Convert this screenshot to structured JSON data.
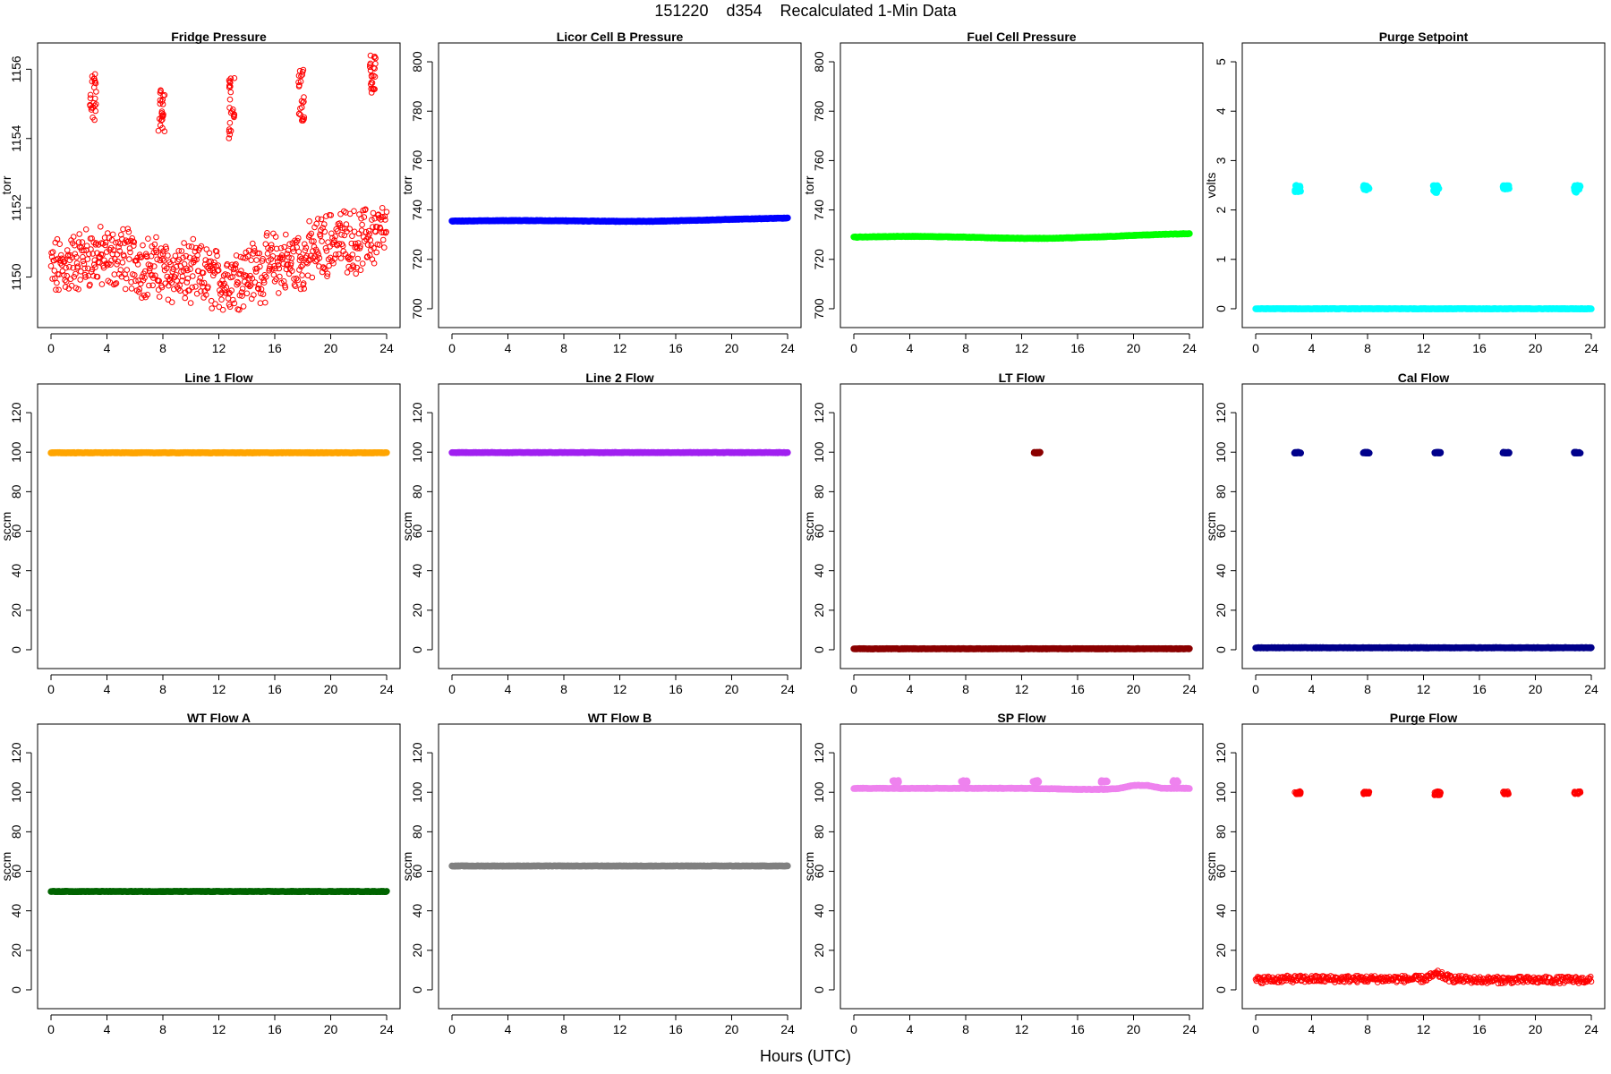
{
  "figure": {
    "title": "151220    d354    Recalculated 1-Min Data",
    "xlabel": "Hours (UTC)"
  },
  "chart_data": [
    {
      "type": "scatter",
      "title": "Fridge Pressure",
      "ylabel": "torr",
      "xlim": [
        0,
        24
      ],
      "xticks": [
        0,
        4,
        8,
        12,
        16,
        20,
        24
      ],
      "ylim": [
        1148.8,
        1156.5
      ],
      "yticks": [
        1150,
        1152,
        1154,
        1156
      ],
      "color": "#ff0000",
      "marker": "open-circle",
      "series": [
        {
          "x": [
            0,
            1,
            2,
            3,
            4,
            5,
            6,
            7,
            8,
            9,
            10,
            11,
            12,
            13,
            14,
            15,
            16,
            17,
            18,
            19,
            20,
            21,
            22,
            23,
            24
          ],
          "y": [
            1150.2,
            1150.3,
            1150.5,
            1150.6,
            1150.5,
            1150.6,
            1150.4,
            1150.3,
            1150.2,
            1150.1,
            1150.1,
            1150.0,
            1149.9,
            1150.0,
            1150.1,
            1150.2,
            1150.4,
            1150.4,
            1150.5,
            1150.8,
            1151.0,
            1151.1,
            1151.0,
            1151.2,
            1151.3
          ]
        }
      ],
      "excursions": [
        {
          "x": 3.0,
          "y_min": 1154.5,
          "y_max": 1156.0
        },
        {
          "x": 7.9,
          "y_min": 1154.2,
          "y_max": 1155.5
        },
        {
          "x": 12.9,
          "y_min": 1154.0,
          "y_max": 1156.0
        },
        {
          "x": 17.9,
          "y_min": 1154.5,
          "y_max": 1156.0
        },
        {
          "x": 23.0,
          "y_min": 1155.3,
          "y_max": 1156.4
        }
      ]
    },
    {
      "type": "scatter",
      "title": "Licor Cell B Pressure",
      "ylabel": "torr",
      "xlim": [
        0,
        24
      ],
      "xticks": [
        0,
        4,
        8,
        12,
        16,
        20,
        24
      ],
      "ylim": [
        696,
        804
      ],
      "yticks": [
        700,
        720,
        740,
        760,
        780,
        800
      ],
      "color": "#0000ff",
      "marker": "filled-circle",
      "series": [
        {
          "x": [
            0,
            2,
            4,
            6,
            8,
            10,
            12,
            14,
            16,
            18,
            20,
            22,
            24
          ],
          "y": [
            735.5,
            735.6,
            735.7,
            735.7,
            735.6,
            735.5,
            735.4,
            735.4,
            735.6,
            735.9,
            736.2,
            736.5,
            736.7
          ]
        }
      ]
    },
    {
      "type": "scatter",
      "title": "Fuel Cell Pressure",
      "ylabel": "torr",
      "xlim": [
        0,
        24
      ],
      "xticks": [
        0,
        4,
        8,
        12,
        16,
        20,
        24
      ],
      "ylim": [
        696,
        804
      ],
      "yticks": [
        700,
        720,
        740,
        760,
        780,
        800
      ],
      "color": "#00ff00",
      "marker": "filled-circle",
      "series": [
        {
          "x": [
            0,
            2,
            4,
            6,
            8,
            10,
            12,
            14,
            16,
            18,
            20,
            22,
            24
          ],
          "y": [
            729.0,
            729.2,
            729.3,
            729.2,
            729.0,
            728.7,
            728.5,
            728.5,
            728.8,
            729.2,
            729.7,
            730.1,
            730.4
          ]
        }
      ]
    },
    {
      "type": "scatter",
      "title": "Purge Setpoint",
      "ylabel": "volts",
      "xlim": [
        0,
        24
      ],
      "xticks": [
        0,
        4,
        8,
        12,
        16,
        20,
        24
      ],
      "ylim": [
        -0.2,
        5.2
      ],
      "yticks": [
        0,
        1,
        2,
        3,
        4,
        5
      ],
      "color": "#00ffff",
      "marker": "filled-circle",
      "series": [
        {
          "x": [
            0,
            24
          ],
          "y": [
            0,
            0
          ]
        }
      ],
      "excursions": [
        {
          "x": 3.0,
          "y_min": 2.35,
          "y_max": 2.5
        },
        {
          "x": 7.9,
          "y_min": 2.4,
          "y_max": 2.5
        },
        {
          "x": 12.9,
          "y_min": 2.35,
          "y_max": 2.5
        },
        {
          "x": 17.9,
          "y_min": 2.42,
          "y_max": 2.5
        },
        {
          "x": 23.0,
          "y_min": 2.35,
          "y_max": 2.5
        }
      ]
    },
    {
      "type": "scatter",
      "title": "Line 1 Flow",
      "ylabel": "sccm",
      "xlim": [
        0,
        24
      ],
      "xticks": [
        0,
        4,
        8,
        12,
        16,
        20,
        24
      ],
      "ylim": [
        -5,
        130
      ],
      "yticks": [
        0,
        20,
        40,
        60,
        80,
        100,
        120
      ],
      "color": "#ffa500",
      "marker": "filled-circle",
      "series": [
        {
          "x": [
            0,
            24
          ],
          "y": [
            99.7,
            99.7
          ]
        }
      ]
    },
    {
      "type": "scatter",
      "title": "Line 2 Flow",
      "ylabel": "sccm",
      "xlim": [
        0,
        24
      ],
      "xticks": [
        0,
        4,
        8,
        12,
        16,
        20,
        24
      ],
      "ylim": [
        -5,
        130
      ],
      "yticks": [
        0,
        20,
        40,
        60,
        80,
        100,
        120
      ],
      "color": "#a020f0",
      "marker": "filled-circle",
      "series": [
        {
          "x": [
            0,
            24
          ],
          "y": [
            99.8,
            99.8
          ]
        }
      ]
    },
    {
      "type": "scatter",
      "title": "LT Flow",
      "ylabel": "sccm",
      "xlim": [
        0,
        24
      ],
      "xticks": [
        0,
        4,
        8,
        12,
        16,
        20,
        24
      ],
      "ylim": [
        -5,
        130
      ],
      "yticks": [
        0,
        20,
        40,
        60,
        80,
        100,
        120
      ],
      "color": "#8b0000",
      "marker": "filled-circle",
      "series": [
        {
          "x": [
            0,
            24
          ],
          "y": [
            0.5,
            0.5
          ]
        }
      ],
      "excursions": [
        {
          "x": 13.1,
          "y_min": 99.5,
          "y_max": 100
        }
      ]
    },
    {
      "type": "scatter",
      "title": "Cal Flow",
      "ylabel": "sccm",
      "xlim": [
        0,
        24
      ],
      "xticks": [
        0,
        4,
        8,
        12,
        16,
        20,
        24
      ],
      "ylim": [
        -5,
        130
      ],
      "yticks": [
        0,
        20,
        40,
        60,
        80,
        100,
        120
      ],
      "color": "#00008b",
      "marker": "filled-circle",
      "series": [
        {
          "x": [
            0,
            24
          ],
          "y": [
            1,
            1
          ]
        }
      ],
      "excursions": [
        {
          "x": 3.0,
          "y_min": 99.5,
          "y_max": 100
        },
        {
          "x": 7.9,
          "y_min": 99.5,
          "y_max": 100
        },
        {
          "x": 13.0,
          "y_min": 99.5,
          "y_max": 100
        },
        {
          "x": 17.9,
          "y_min": 99.5,
          "y_max": 100
        },
        {
          "x": 23.0,
          "y_min": 99.5,
          "y_max": 100
        }
      ]
    },
    {
      "type": "scatter",
      "title": "WT Flow A",
      "ylabel": "sccm",
      "xlim": [
        0,
        24
      ],
      "xticks": [
        0,
        4,
        8,
        12,
        16,
        20,
        24
      ],
      "ylim": [
        -5,
        130
      ],
      "yticks": [
        0,
        20,
        40,
        60,
        80,
        100,
        120
      ],
      "color": "#006400",
      "marker": "filled-circle",
      "series": [
        {
          "x": [
            0,
            24
          ],
          "y": [
            49.8,
            49.8
          ]
        }
      ]
    },
    {
      "type": "scatter",
      "title": "WT Flow B",
      "ylabel": "sccm",
      "xlim": [
        0,
        24
      ],
      "xticks": [
        0,
        4,
        8,
        12,
        16,
        20,
        24
      ],
      "ylim": [
        -5,
        130
      ],
      "yticks": [
        0,
        20,
        40,
        60,
        80,
        100,
        120
      ],
      "color": "#808080",
      "marker": "filled-circle",
      "series": [
        {
          "x": [
            0,
            24
          ],
          "y": [
            62.7,
            62.7
          ]
        }
      ]
    },
    {
      "type": "scatter",
      "title": "SP Flow",
      "ylabel": "sccm",
      "xlim": [
        0,
        24
      ],
      "xticks": [
        0,
        4,
        8,
        12,
        16,
        20,
        24
      ],
      "ylim": [
        -5,
        130
      ],
      "yticks": [
        0,
        20,
        40,
        60,
        80,
        100,
        120
      ],
      "color": "#ee82ee",
      "marker": "filled-circle",
      "series": [
        {
          "x": [
            0,
            2,
            4,
            6,
            8,
            10,
            12,
            14,
            16,
            18,
            19,
            20,
            21,
            22,
            23,
            24
          ],
          "y": [
            102,
            102,
            102,
            102,
            102,
            102,
            102,
            101.8,
            101.5,
            101.5,
            102,
            103.5,
            103.5,
            102,
            102,
            102
          ]
        }
      ],
      "excursions": [
        {
          "x": 3.0,
          "y_min": 105,
          "y_max": 106
        },
        {
          "x": 7.9,
          "y_min": 105,
          "y_max": 106
        },
        {
          "x": 13.0,
          "y_min": 105,
          "y_max": 106
        },
        {
          "x": 17.9,
          "y_min": 105,
          "y_max": 106
        },
        {
          "x": 23.0,
          "y_min": 105,
          "y_max": 106
        }
      ]
    },
    {
      "type": "scatter",
      "title": "Purge Flow",
      "ylabel": "sccm",
      "xlim": [
        0,
        24
      ],
      "xticks": [
        0,
        4,
        8,
        12,
        16,
        20,
        24
      ],
      "ylim": [
        -5,
        130
      ],
      "yticks": [
        0,
        20,
        40,
        60,
        80,
        100,
        120
      ],
      "color": "#ff0000",
      "marker": "open-circle",
      "series": [
        {
          "x": [
            0,
            2,
            4,
            6,
            8,
            10,
            12,
            13,
            14,
            16,
            18,
            20,
            22,
            24
          ],
          "y": [
            5,
            5.5,
            5.5,
            5.5,
            5.5,
            5.5,
            5.5,
            8,
            5.5,
            5,
            5,
            5,
            5,
            5
          ]
        }
      ],
      "excursions": [
        {
          "x": 3.0,
          "y_min": 99,
          "y_max": 100.5
        },
        {
          "x": 7.9,
          "y_min": 99,
          "y_max": 100.5
        },
        {
          "x": 13.0,
          "y_min": 98.5,
          "y_max": 100.5
        },
        {
          "x": 17.9,
          "y_min": 99,
          "y_max": 100.5
        },
        {
          "x": 23.0,
          "y_min": 99,
          "y_max": 100.5
        }
      ]
    }
  ]
}
